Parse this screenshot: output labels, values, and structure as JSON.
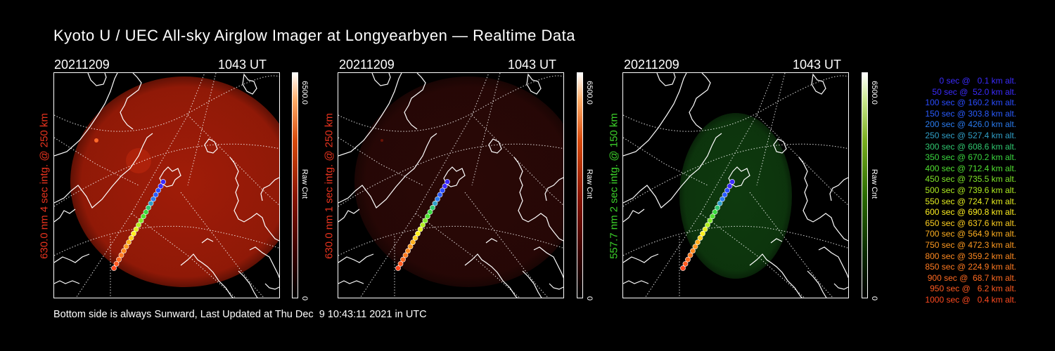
{
  "title": "Kyoto U / UEC All-sky Airglow Imager at Longyearbyen — Realtime Data",
  "panels": [
    {
      "date": "20211209",
      "time": "1043 UT",
      "side_label": "630.0 nm 4 sec intg. @ 250 km",
      "label_color": "#e8331e",
      "cbar_max": "6500.0",
      "cbar_min": "0",
      "cbar_unit": "Raw Cnt",
      "colormap": "red",
      "glow_color": "#a01c08"
    },
    {
      "date": "20211209",
      "time": "1043 UT",
      "side_label": "630.0 nm 1 sec intg. @ 250 km",
      "label_color": "#e8331e",
      "cbar_max": "6500.0",
      "cbar_min": "0",
      "cbar_unit": "Raw Cnt",
      "colormap": "red",
      "glow_color": "#2a0806"
    },
    {
      "date": "20211209",
      "time": "1043 UT",
      "side_label": "557.7 nm 2 sec intg. @ 150 km",
      "label_color": "#3cd12a",
      "cbar_max": "6500.0",
      "cbar_min": "0",
      "cbar_unit": "Raw Cnt",
      "colormap": "green",
      "glow_color": "#0e3a0e"
    }
  ],
  "legend": [
    {
      "text": "0 sec @   0.1 km alt.",
      "color": "#3b2bff"
    },
    {
      "text": "50 sec @  52.0 km alt.",
      "color": "#3b2bff"
    },
    {
      "text": "100 sec @ 160.2 km alt.",
      "color": "#2a4cff"
    },
    {
      "text": "150 sec @ 303.8 km alt.",
      "color": "#2a5cff"
    },
    {
      "text": "200 sec @ 426.0 km alt.",
      "color": "#2a7cf0"
    },
    {
      "text": "250 sec @ 527.4 km alt.",
      "color": "#30a0c8"
    },
    {
      "text": "300 sec @ 608.6 km alt.",
      "color": "#30c870"
    },
    {
      "text": "350 sec @ 670.2 km alt.",
      "color": "#3ad840"
    },
    {
      "text": "400 sec @ 712.4 km alt.",
      "color": "#50e030"
    },
    {
      "text": "450 sec @ 735.5 km alt.",
      "color": "#80e828"
    },
    {
      "text": "500 sec @ 739.6 km alt.",
      "color": "#b0ee20"
    },
    {
      "text": "550 sec @ 724.7 km alt.",
      "color": "#e4ee20"
    },
    {
      "text": "600 sec @ 690.8 km alt.",
      "color": "#fff020"
    },
    {
      "text": "650 sec @ 637.6 km alt.",
      "color": "#ffd020"
    },
    {
      "text": "700 sec @ 564.9 km alt.",
      "color": "#ffb020"
    },
    {
      "text": "750 sec @ 472.3 km alt.",
      "color": "#ff9a20"
    },
    {
      "text": "800 sec @ 359.2 km alt.",
      "color": "#ff8a20"
    },
    {
      "text": "850 sec @ 224.9 km alt.",
      "color": "#ff7a20"
    },
    {
      "text": "900 sec @  68.7 km alt.",
      "color": "#ff6a20"
    },
    {
      "text": "950 sec @   6.2 km alt.",
      "color": "#ff5a20"
    },
    {
      "text": "1000 sec @   0.4 km alt.",
      "color": "#ff4a20"
    }
  ],
  "footer": "Bottom side is always Sunward, Last Updated at Thu Dec  9 10:43:11 2021 in UTC"
}
